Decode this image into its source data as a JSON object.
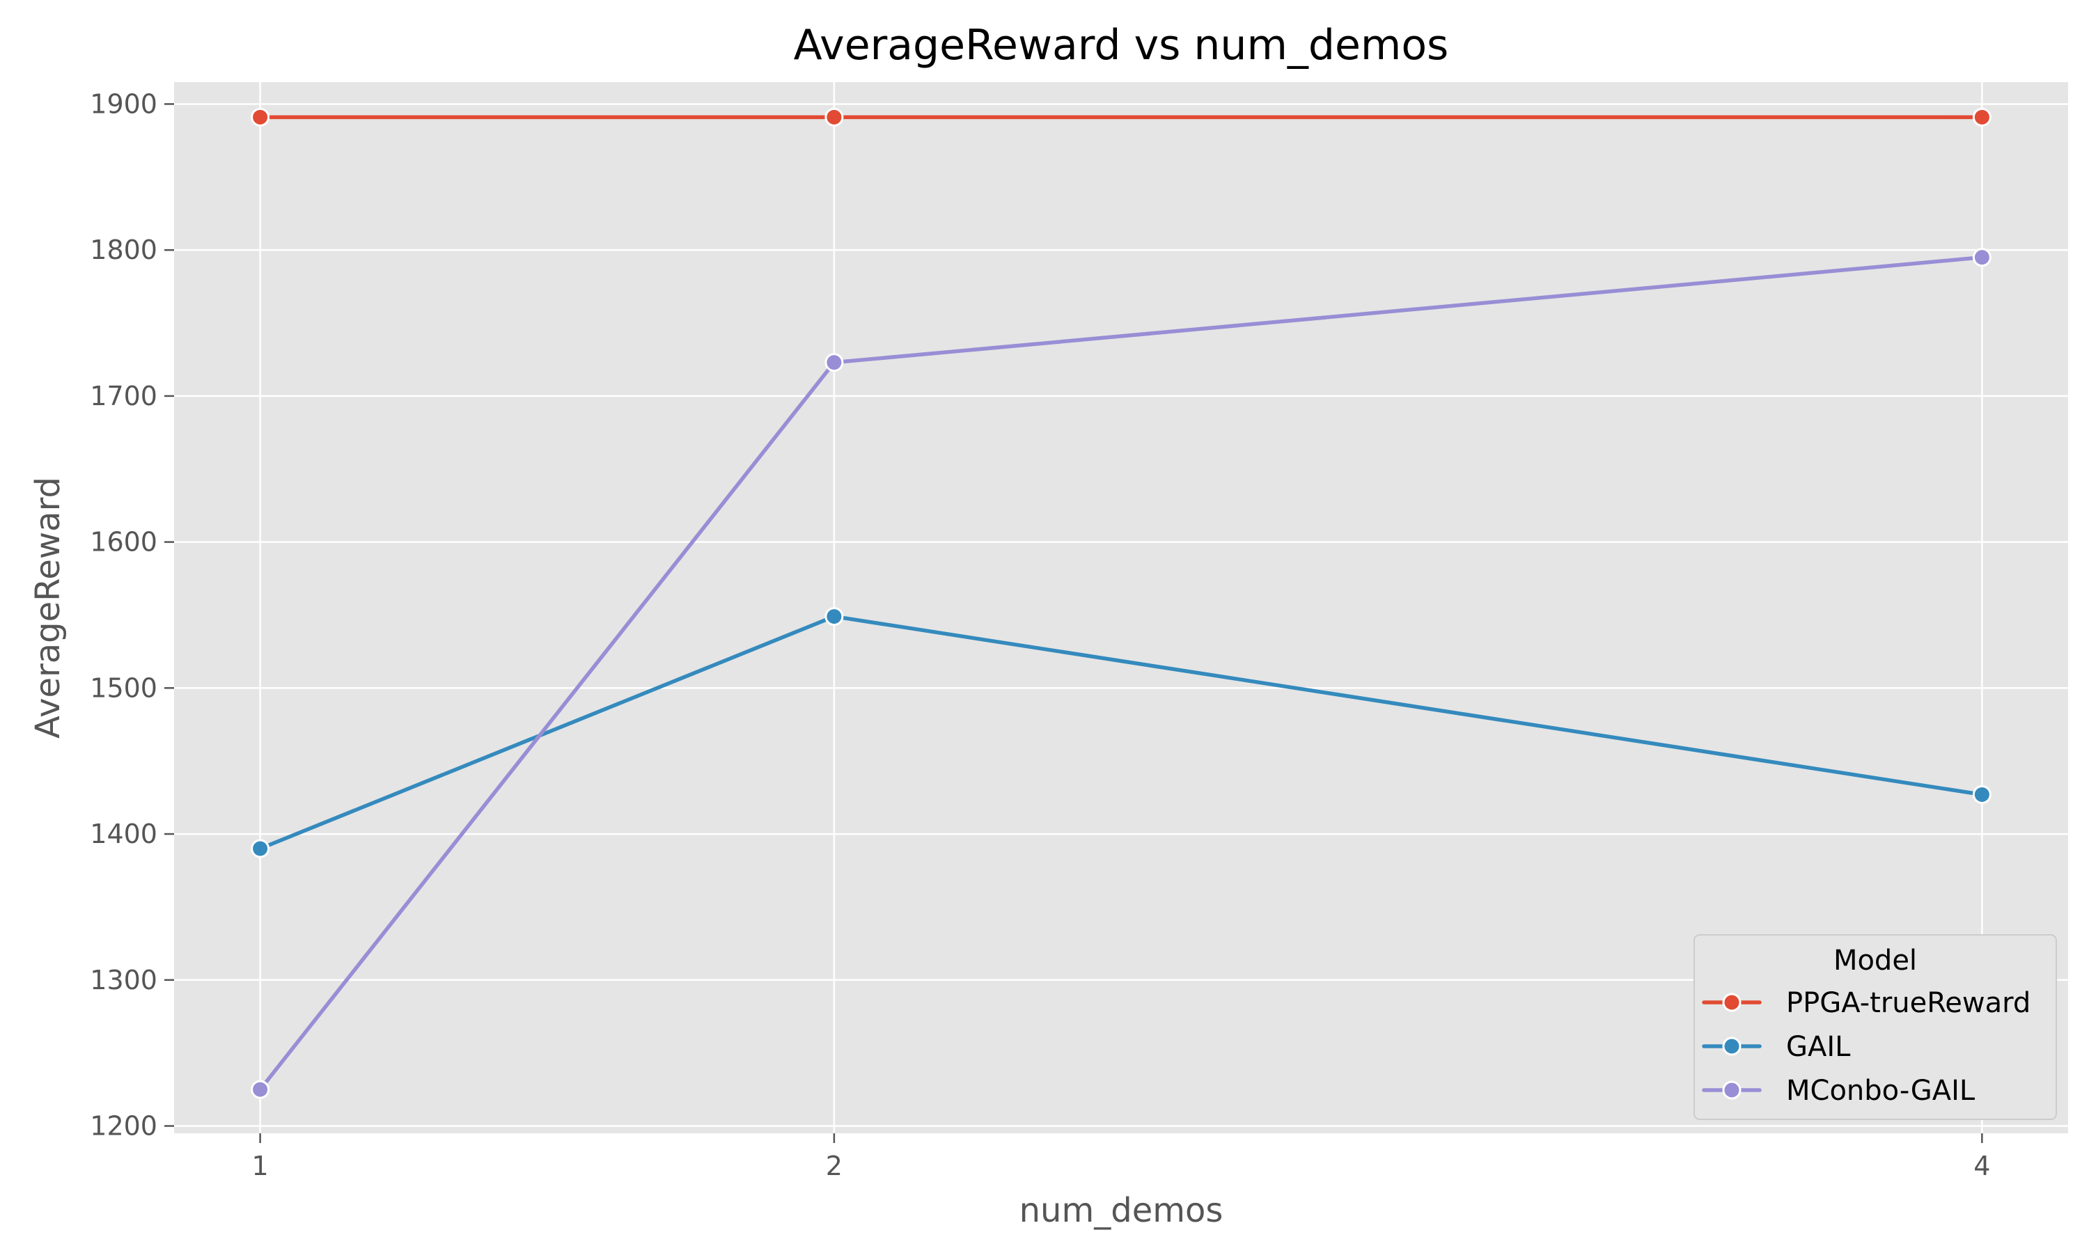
{
  "chart_data": {
    "type": "line",
    "title": "AverageReward vs num_demos",
    "xlabel": "num_demos",
    "ylabel": "AverageReward",
    "x": [
      1,
      2,
      4
    ],
    "xlim": [
      0.85,
      4.15
    ],
    "ylim": [
      1195,
      1915
    ],
    "yticks": [
      1200,
      1300,
      1400,
      1500,
      1600,
      1700,
      1800,
      1900
    ],
    "grid": true,
    "legend": {
      "title": "Model",
      "placement": "lower-right"
    },
    "series": [
      {
        "name": "PPGA-trueReward",
        "color": "#E24A33",
        "values": [
          1891,
          1891,
          1891
        ]
      },
      {
        "name": "GAIL",
        "color": "#348ABD",
        "values": [
          1390,
          1549,
          1427
        ]
      },
      {
        "name": "MConbo-GAIL",
        "color": "#988ED5",
        "values": [
          1225,
          1723,
          1795
        ]
      }
    ]
  }
}
